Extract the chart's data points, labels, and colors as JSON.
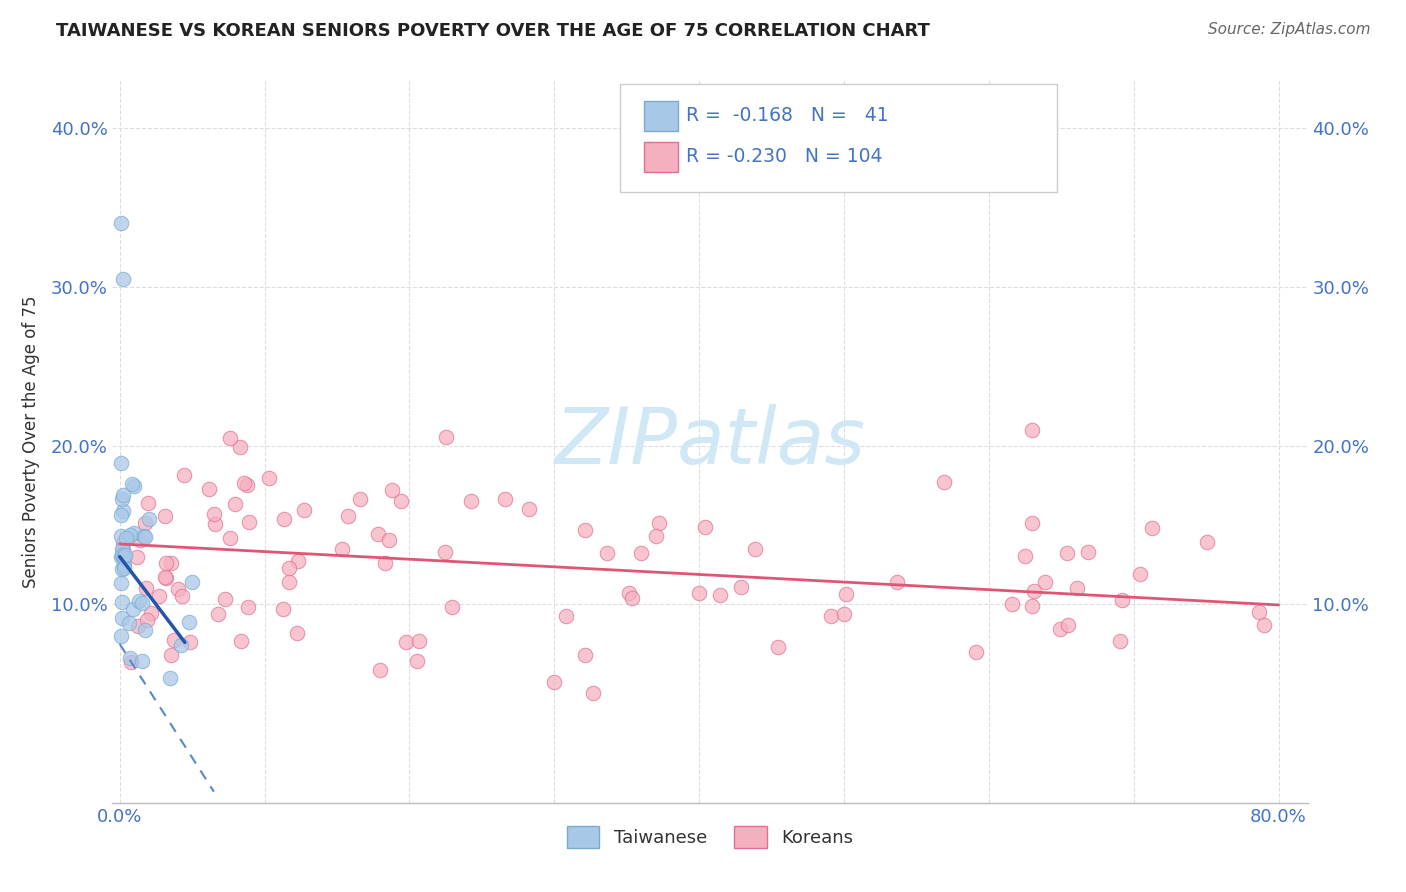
{
  "title": "TAIWANESE VS KOREAN SENIORS POVERTY OVER THE AGE OF 75 CORRELATION CHART",
  "source": "Source: ZipAtlas.com",
  "ylabel": "Seniors Poverty Over the Age of 75",
  "xlim": [
    -0.005,
    0.82
  ],
  "ylim": [
    -0.025,
    0.43
  ],
  "taiwan_color": "#a8c8e8",
  "taiwan_edge": "#7aaad0",
  "korean_color": "#f5b0c0",
  "korean_edge": "#e07090",
  "taiwan_R": -0.168,
  "taiwan_N": 41,
  "korean_R": -0.23,
  "korean_N": 104,
  "watermark_color": "#d0e8f5",
  "background_color": "#ffffff",
  "grid_color": "#dddddd",
  "axis_color": "#4472c4",
  "title_color": "#222222",
  "source_color": "#666666"
}
